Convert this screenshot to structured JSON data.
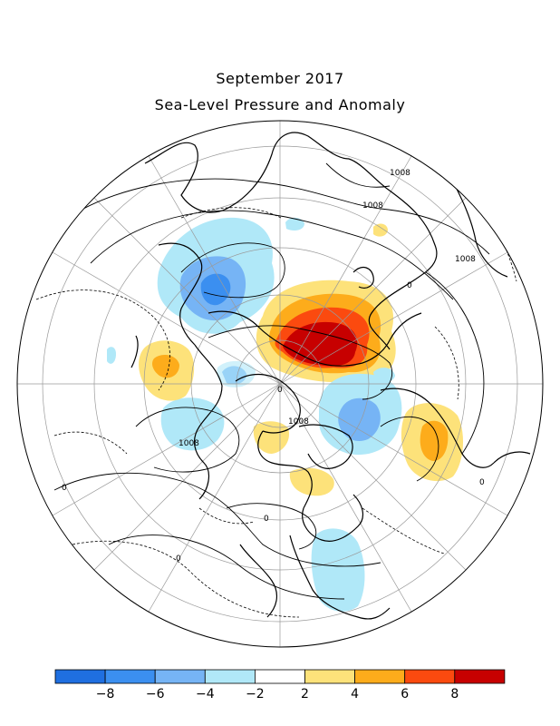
{
  "title": {
    "line1": "September 2017",
    "line2": "Sea-Level Pressure and Anomaly"
  },
  "map": {
    "projection": "north polar stereographic",
    "land_outline_color": "#000000",
    "contour_labels": [
      "1008",
      "1008",
      "1008",
      "1008",
      "1008",
      "0",
      "0",
      "0",
      "0",
      "0",
      "0"
    ]
  },
  "colorbar": {
    "tick_labels": [
      "−8",
      "−6",
      "−4",
      "−2",
      "2",
      "4",
      "6",
      "8"
    ],
    "colors": [
      "#1f6fe0",
      "#3b8ff0",
      "#76b4f5",
      "#b0e8f8",
      "#ffffff",
      "#fde27a",
      "#fdac1b",
      "#fb4a0f",
      "#c70000"
    ]
  }
}
